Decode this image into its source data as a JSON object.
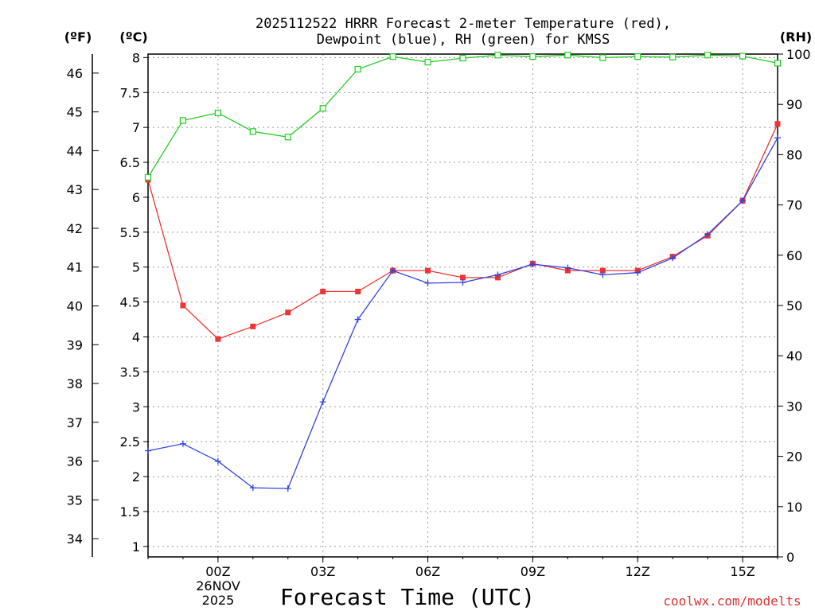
{
  "chart_data": {
    "type": "line",
    "title_line1": "2025112522 HRRR Forecast 2-meter Temperature (red),",
    "title_line2": "Dewpoint (blue), RH (green) for KMSS",
    "xlabel": "Forecast Time (UTC)",
    "credit": "coolwx.com/modelts",
    "unit_labels": {
      "fahrenheit": "(ºF)",
      "celsius": "(ºC)",
      "rh": "(RH)"
    },
    "x_hours": [
      22,
      23,
      24,
      25,
      26,
      27,
      28,
      29,
      30,
      31,
      32,
      33,
      34,
      35,
      36,
      37,
      38,
      39,
      40
    ],
    "xlim": [
      22,
      40
    ],
    "x_ticks": [
      {
        "hour": 24,
        "label": "00Z"
      },
      {
        "hour": 27,
        "label": "03Z"
      },
      {
        "hour": 30,
        "label": "06Z"
      },
      {
        "hour": 33,
        "label": "09Z"
      },
      {
        "hour": 36,
        "label": "12Z"
      },
      {
        "hour": 39,
        "label": "15Z"
      }
    ],
    "date_label": {
      "hour": 24,
      "day": "26NOV",
      "year": "2025"
    },
    "celsius_axis": {
      "range": [
        0.85,
        8.05
      ],
      "ticks": [
        "1",
        "1.5",
        "2",
        "2.5",
        "3",
        "3.5",
        "4",
        "4.5",
        "5",
        "5.5",
        "6",
        "6.5",
        "7",
        "7.5",
        "8"
      ]
    },
    "fahrenheit_axis": {
      "ticks": [
        "34",
        "35",
        "36",
        "37",
        "38",
        "39",
        "40",
        "41",
        "42",
        "43",
        "44",
        "45",
        "46"
      ]
    },
    "rh_axis": {
      "range": [
        0,
        100
      ],
      "ticks": [
        "0",
        "10",
        "20",
        "30",
        "40",
        "50",
        "60",
        "70",
        "80",
        "90",
        "100"
      ]
    },
    "series": [
      {
        "name": "Temperature",
        "unit": "C",
        "color": "#ee3333",
        "marker": "filled-square",
        "values": [
          6.25,
          4.45,
          3.97,
          4.15,
          4.35,
          4.65,
          4.65,
          4.95,
          4.95,
          4.85,
          4.85,
          5.05,
          4.95,
          4.95,
          4.95,
          5.15,
          5.45,
          5.95,
          7.05
        ]
      },
      {
        "name": "Dewpoint",
        "unit": "C",
        "color": "#3344dd",
        "marker": "plus",
        "values": [
          2.37,
          2.47,
          2.22,
          1.84,
          1.83,
          3.07,
          4.25,
          4.95,
          4.77,
          4.78,
          4.89,
          5.04,
          4.99,
          4.89,
          4.92,
          5.13,
          5.47,
          5.95,
          6.85
        ]
      },
      {
        "name": "RH",
        "unit": "%",
        "color": "#22cc22",
        "marker": "open-square",
        "values": [
          75.5,
          86.8,
          88.3,
          84.6,
          83.5,
          89.2,
          97.0,
          99.5,
          98.4,
          99.2,
          99.8,
          99.5,
          99.8,
          99.3,
          99.5,
          99.4,
          99.8,
          99.6,
          98.2
        ]
      }
    ]
  }
}
